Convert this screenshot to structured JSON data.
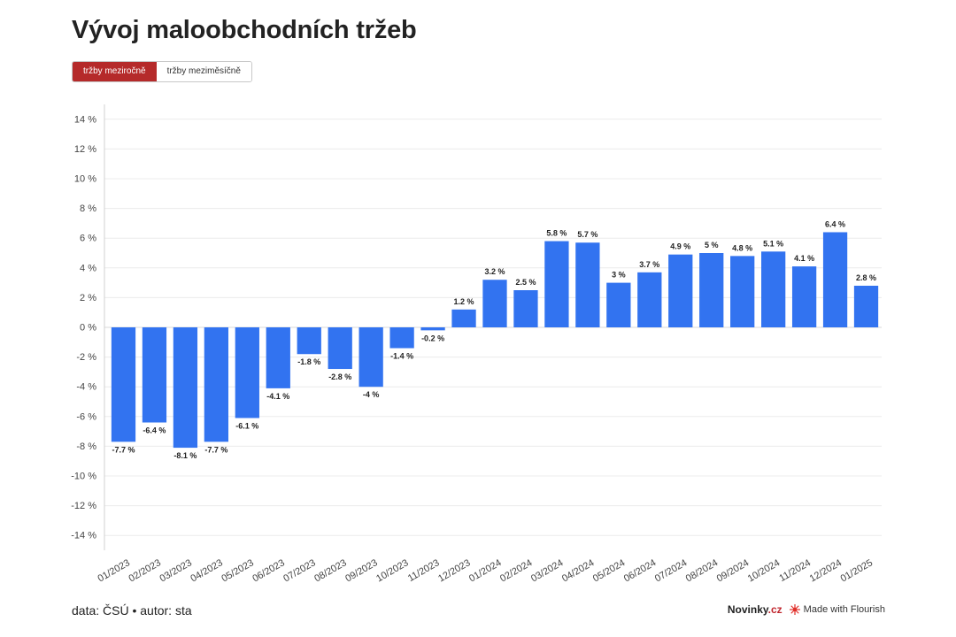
{
  "header": {
    "title": "Vývoj maloobchodních tržeb"
  },
  "toggle": {
    "options": [
      "tržby meziročně",
      "tržby meziměsíčně"
    ],
    "active": 0
  },
  "footer": {
    "source": "data: ČSÚ • autor: sta",
    "brand_main": "Novinky",
    "brand_tld": ".cz",
    "made_with": "Made with Flourish"
  },
  "colors": {
    "bar": "#3273f0",
    "accent": "#b52a2a",
    "flourish": "#e0302a"
  },
  "chart_data": {
    "type": "bar",
    "categories": [
      "01/2023",
      "02/2023",
      "03/2023",
      "04/2023",
      "05/2023",
      "06/2023",
      "07/2023",
      "08/2023",
      "09/2023",
      "10/2023",
      "11/2023",
      "12/2023",
      "01/2024",
      "02/2024",
      "03/2024",
      "04/2024",
      "05/2024",
      "06/2024",
      "07/2024",
      "08/2024",
      "09/2024",
      "10/2024",
      "11/2024",
      "12/2024",
      "01/2025"
    ],
    "values": [
      -7.7,
      -6.4,
      -8.1,
      -7.7,
      -6.1,
      -4.1,
      -1.8,
      -2.8,
      -4,
      -1.4,
      -0.2,
      1.2,
      3.2,
      2.5,
      5.8,
      5.7,
      3,
      3.7,
      4.9,
      5,
      4.8,
      5.1,
      4.1,
      6.4,
      2.8
    ],
    "data_labels": [
      "-7.7 %",
      "-6.4 %",
      "-8.1 %",
      "-7.7 %",
      "-6.1 %",
      "-4.1 %",
      "-1.8 %",
      "-2.8 %",
      "-4 %",
      "-1.4 %",
      "-0.2 %",
      "1.2 %",
      "3.2 %",
      "2.5 %",
      "5.8 %",
      "5.7 %",
      "3 %",
      "3.7 %",
      "4.9 %",
      "5 %",
      "4.8 %",
      "5.1 %",
      "4.1 %",
      "6.4 %",
      "2.8 %"
    ],
    "y_ticks": [
      14,
      12,
      10,
      8,
      6,
      4,
      2,
      0,
      -2,
      -4,
      -6,
      -8,
      -10,
      -12,
      -14
    ],
    "y_tick_labels": [
      "14 %",
      "12 %",
      "10 %",
      "8 %",
      "6 %",
      "4 %",
      "2 %",
      "0 %",
      "-2 %",
      "-4 %",
      "-6 %",
      "-8 %",
      "-10 %",
      "-12 %",
      "-14 %"
    ],
    "ylim": [
      -15,
      15
    ],
    "grid": true,
    "legend": "none"
  }
}
